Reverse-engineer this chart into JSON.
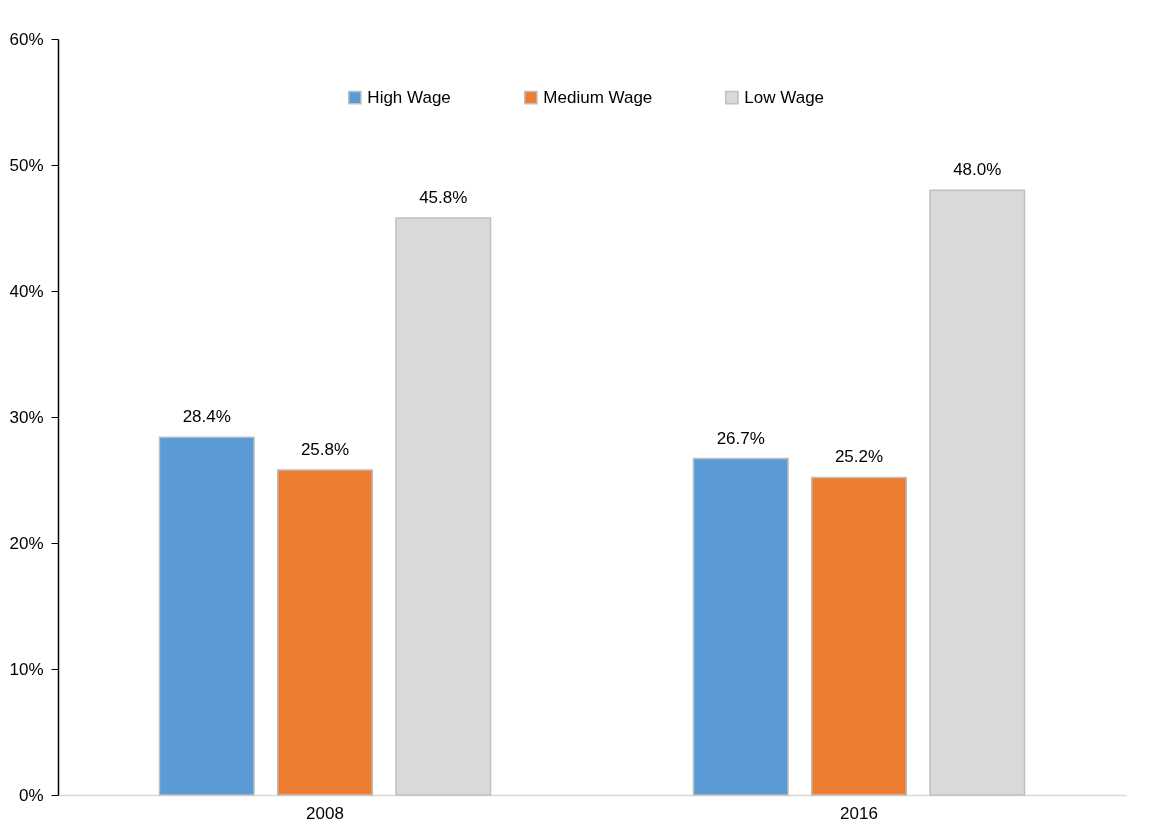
{
  "chart_data": {
    "type": "bar",
    "categories": [
      "2008",
      "2016"
    ],
    "series": [
      {
        "name": "High Wage",
        "color": "#5b9bd5",
        "values": [
          28.4,
          26.7
        ],
        "value_labels": [
          "28.4%",
          "26.7%"
        ]
      },
      {
        "name": "Medium Wage",
        "color": "#ed7d31",
        "values": [
          25.8,
          25.2
        ],
        "value_labels": [
          "25.8%",
          "25.2%"
        ]
      },
      {
        "name": "Low Wage",
        "color": "#d9d9d9",
        "values": [
          45.8,
          48.0
        ],
        "value_labels": [
          "45.8%",
          "48.0%"
        ]
      }
    ],
    "ylim": [
      0,
      60
    ],
    "yticks": [
      {
        "value": 0,
        "label": "0%"
      },
      {
        "value": 10,
        "label": "10%"
      },
      {
        "value": 20,
        "label": "20%"
      },
      {
        "value": 30,
        "label": "30%"
      },
      {
        "value": 40,
        "label": "40%"
      },
      {
        "value": 50,
        "label": "50%"
      },
      {
        "value": 60,
        "label": "60%"
      }
    ],
    "grid": false,
    "legend": "top"
  }
}
